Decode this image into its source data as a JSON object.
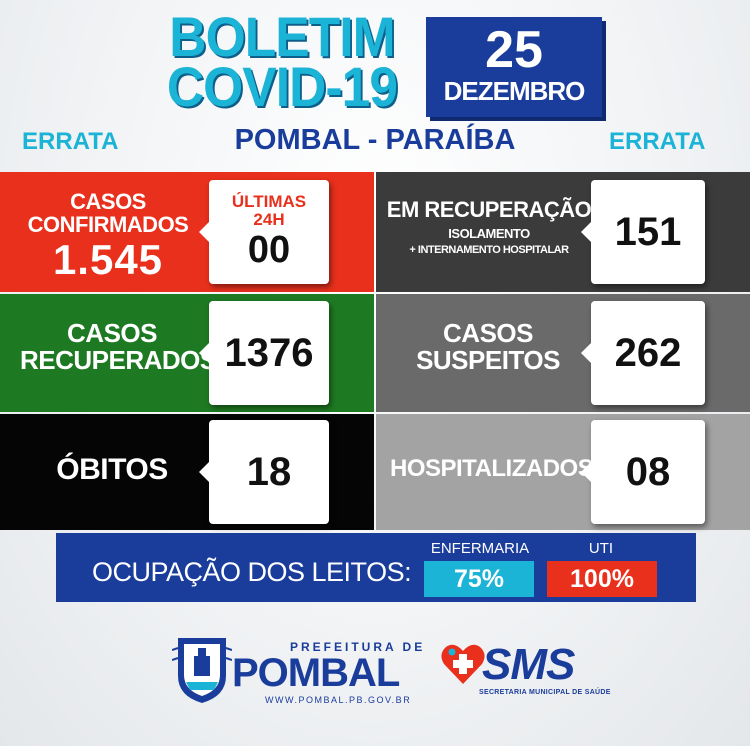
{
  "header": {
    "title_line1": "BOLETIM",
    "title_line2": "COVID-19",
    "date_day": "25",
    "date_month": "DEZEMBRO",
    "errata_left": "ERRATA",
    "errata_right": "ERRATA",
    "location": "POMBAL - PARAÍBA"
  },
  "cards": {
    "confirmados": {
      "label_line1": "CASOS",
      "label_line2": "CONFIRMADOS",
      "value": "1.545",
      "last24_label_line1": "ÚLTIMAS",
      "last24_label_line2": "24H",
      "last24_value": "00",
      "color": "#e8301c"
    },
    "recuperacao": {
      "label": "EM RECUPERAÇÃO",
      "sub1": "ISOLAMENTO",
      "sub2": "+ INTERNAMENTO HOSPITALAR",
      "value": "151",
      "color": "#3b3b3b"
    },
    "recuperados": {
      "label_line1": "CASOS",
      "label_line2": "RECUPERADOS",
      "value": "1376",
      "color": "#1e7a22"
    },
    "suspeitos": {
      "label_line1": "CASOS",
      "label_line2": "SUSPEITOS",
      "value": "262",
      "color": "#6a6a6a"
    },
    "obitos": {
      "label": "ÓBITOS",
      "value": "18",
      "color": "#050505"
    },
    "hospitalizados": {
      "label": "HOSPITALIZADOS",
      "value": "08",
      "color": "#a3a3a3"
    }
  },
  "occupancy": {
    "label": "OCUPAÇÃO DOS LEITOS:",
    "enfermaria_label": "ENFERMARIA",
    "enfermaria_value": "75%",
    "enfermaria_color": "#1bb3d6",
    "uti_label": "UTI",
    "uti_value": "100%",
    "uti_color": "#e8301c"
  },
  "footer": {
    "prefeitura_small": "PREFEITURA DE",
    "prefeitura_big": "POMBAL",
    "prefeitura_url": "WWW.POMBAL.PB.GOV.BR",
    "sms_big": "SMS",
    "sms_sub": "SECRETARIA MUNICIPAL DE SAÚDE"
  }
}
